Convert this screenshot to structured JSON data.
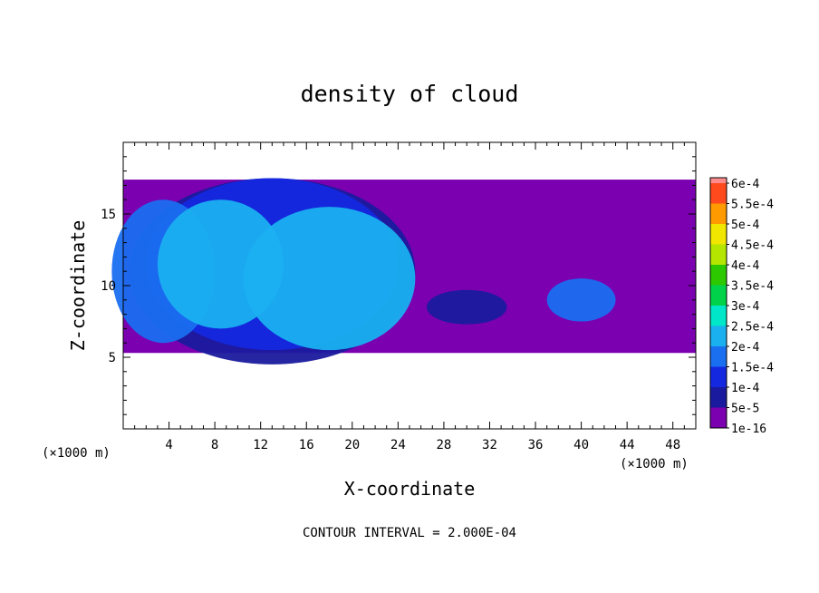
{
  "chart_data": {
    "type": "heatmap",
    "title": "density of cloud",
    "xlabel": "X-coordinate",
    "ylabel": "Z-coordinate",
    "x_unit": "(×1000 m)",
    "z_unit": "(×1000 m)",
    "xlim": [
      0,
      50
    ],
    "ylim": [
      0,
      20
    ],
    "x_ticks": [
      4,
      8,
      12,
      16,
      20,
      24,
      28,
      32,
      36,
      40,
      44,
      48
    ],
    "y_ticks": [
      5,
      10,
      15
    ],
    "footer": "CONTOUR INTERVAL = 2.000E-04",
    "colorbar": {
      "levels": [
        "1e-16",
        "5e-5",
        "1e-4",
        "1.5e-4",
        "2e-4",
        "2.5e-4",
        "3e-4",
        "3.5e-4",
        "4e-4",
        "4.5e-4",
        "5e-4",
        "5.5e-4",
        "6e-4"
      ],
      "colors": [
        "#7a00b0",
        "#1a1a9e",
        "#1428e0",
        "#1a6ef0",
        "#1ab0f0",
        "#00e6c8",
        "#00d24a",
        "#2cc800",
        "#b4e600",
        "#f0e600",
        "#ff9a00",
        "#ff4a1e",
        "#ff8c8c"
      ]
    },
    "field": {
      "z_range": [
        5.3,
        17.4
      ],
      "blobs": [
        {
          "x": 3.5,
          "z": 11,
          "rx": 4.5,
          "rz": 5,
          "level": 3
        },
        {
          "x": 8.5,
          "z": 11.5,
          "rx": 5.5,
          "rz": 4.5,
          "level": 4
        },
        {
          "x": 18,
          "z": 10.5,
          "rx": 7.5,
          "rz": 5,
          "level": 4
        },
        {
          "x": 13,
          "z": 11.5,
          "rx": 11,
          "rz": 6,
          "level": 2
        },
        {
          "x": 13,
          "z": 11,
          "rx": 12.5,
          "rz": 6.5,
          "level": 1
        },
        {
          "x": 40,
          "z": 9,
          "rx": 3,
          "rz": 1.5,
          "level": 3
        },
        {
          "x": 30,
          "z": 8.5,
          "rx": 3.5,
          "rz": 1.2,
          "level": 1
        }
      ]
    }
  }
}
